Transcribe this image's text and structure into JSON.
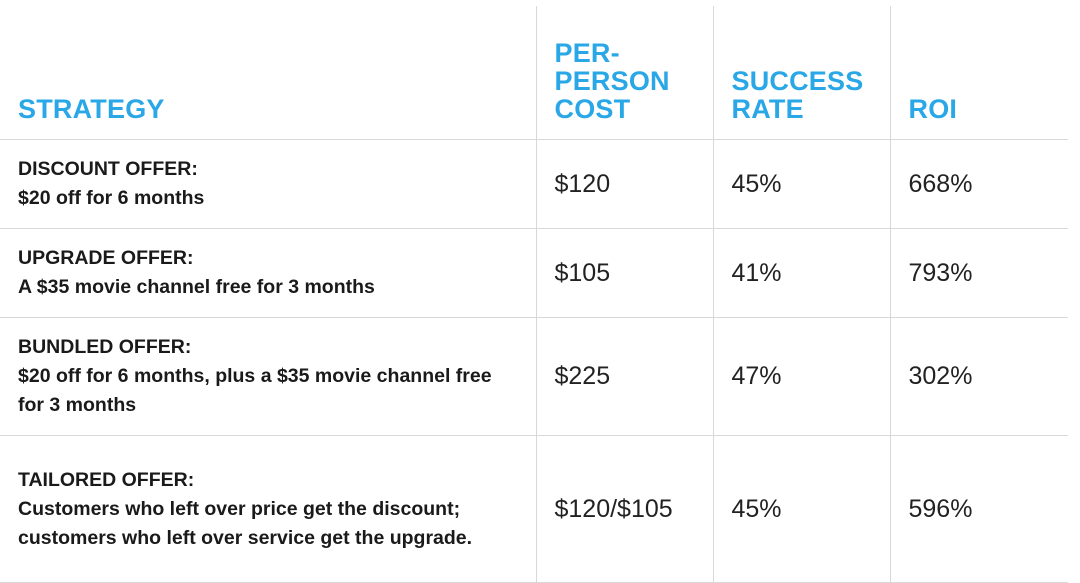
{
  "chart_data": {
    "type": "table",
    "columns": [
      "STRATEGY",
      "PER-PERSON COST",
      "SUCCESS RATE",
      "ROI"
    ],
    "rows": [
      {
        "name": "DISCOUNT OFFER:",
        "description": "$20 off for 6 months",
        "cost": "$120",
        "success_rate": "45%",
        "roi": "668%"
      },
      {
        "name": "UPGRADE OFFER:",
        "description": "A $35 movie channel free for 3 months",
        "cost": "$105",
        "success_rate": "41%",
        "roi": "793%"
      },
      {
        "name": "BUNDLED OFFER:",
        "description": "$20 off for 6 months, plus a $35 movie channel free for 3 months",
        "cost": "$225",
        "success_rate": "47%",
        "roi": "302%"
      },
      {
        "name": "TAILORED OFFER:",
        "description": "Customers who left over price get the discount; customers who left over service get the upgrade.",
        "cost": "$120/$105",
        "success_rate": "45%",
        "roi": "596%"
      }
    ],
    "header_color": "#2aa7e6"
  }
}
